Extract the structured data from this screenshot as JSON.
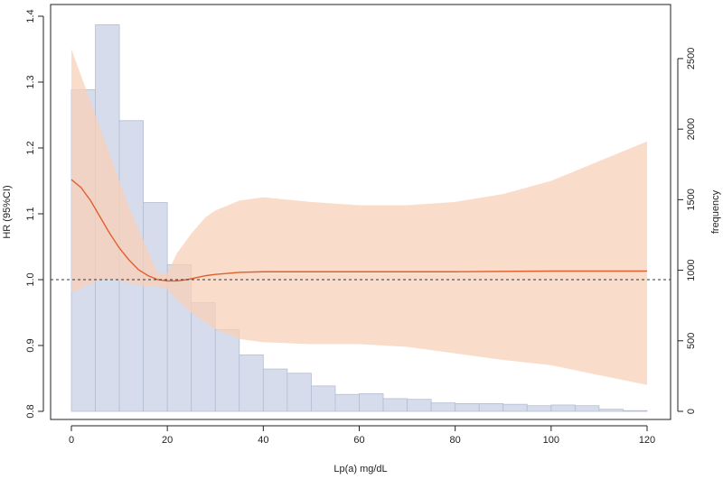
{
  "chart_data": {
    "type": "line",
    "xlabel": "Lp(a) mg/dL",
    "ylabel_left": "HR (95%CI)",
    "ylabel_right": "frequency",
    "xlim": [
      0,
      120
    ],
    "ylim_left": [
      0.8,
      1.4
    ],
    "ylim_right": [
      0,
      2800
    ],
    "x_ticks": [
      0,
      20,
      40,
      60,
      80,
      100,
      120
    ],
    "y_left_ticks": [
      0.8,
      0.9,
      1.0,
      1.1,
      1.2,
      1.3,
      1.4
    ],
    "y_right_ticks": [
      0,
      500,
      1000,
      1500,
      2000,
      2500
    ],
    "reference_line": 1.0,
    "histogram": {
      "bin_width": 5,
      "bin_starts": [
        0,
        5,
        10,
        15,
        20,
        25,
        30,
        35,
        40,
        45,
        50,
        55,
        60,
        65,
        70,
        75,
        80,
        85,
        90,
        95,
        100,
        105,
        110,
        115
      ],
      "counts": [
        2280,
        2740,
        2060,
        1480,
        1040,
        770,
        580,
        400,
        300,
        270,
        180,
        120,
        125,
        90,
        85,
        60,
        55,
        55,
        50,
        40,
        45,
        40,
        15,
        5
      ]
    },
    "hr_curve": {
      "x": [
        0,
        2,
        4,
        6,
        8,
        10,
        12,
        14,
        16,
        18,
        20,
        22,
        24,
        26,
        28,
        30,
        35,
        40,
        50,
        60,
        80,
        100,
        120
      ],
      "y": [
        1.152,
        1.14,
        1.12,
        1.095,
        1.07,
        1.048,
        1.03,
        1.015,
        1.006,
        1.0,
        0.998,
        0.998,
        1.0,
        1.003,
        1.006,
        1.008,
        1.011,
        1.012,
        1.012,
        1.012,
        1.012,
        1.013,
        1.013
      ],
      "color": "#e06030"
    },
    "ci_band": {
      "x": [
        0,
        3,
        6,
        9,
        12,
        15,
        18,
        20,
        22,
        25,
        28,
        30,
        35,
        40,
        50,
        60,
        70,
        80,
        90,
        100,
        110,
        120
      ],
      "upper": [
        1.35,
        1.29,
        1.23,
        1.17,
        1.11,
        1.06,
        1.01,
        1.01,
        1.04,
        1.07,
        1.095,
        1.105,
        1.12,
        1.125,
        1.118,
        1.113,
        1.113,
        1.118,
        1.13,
        1.15,
        1.18,
        1.21
      ],
      "lower": [
        0.98,
        0.99,
        1.0,
        1.0,
        0.995,
        0.99,
        0.99,
        0.985,
        0.97,
        0.95,
        0.935,
        0.925,
        0.91,
        0.905,
        0.902,
        0.902,
        0.898,
        0.888,
        0.878,
        0.87,
        0.855,
        0.84
      ],
      "color": "#f8d0b8"
    },
    "histogram_color": "#d6dcec",
    "histogram_edge": "#b4bed2"
  }
}
